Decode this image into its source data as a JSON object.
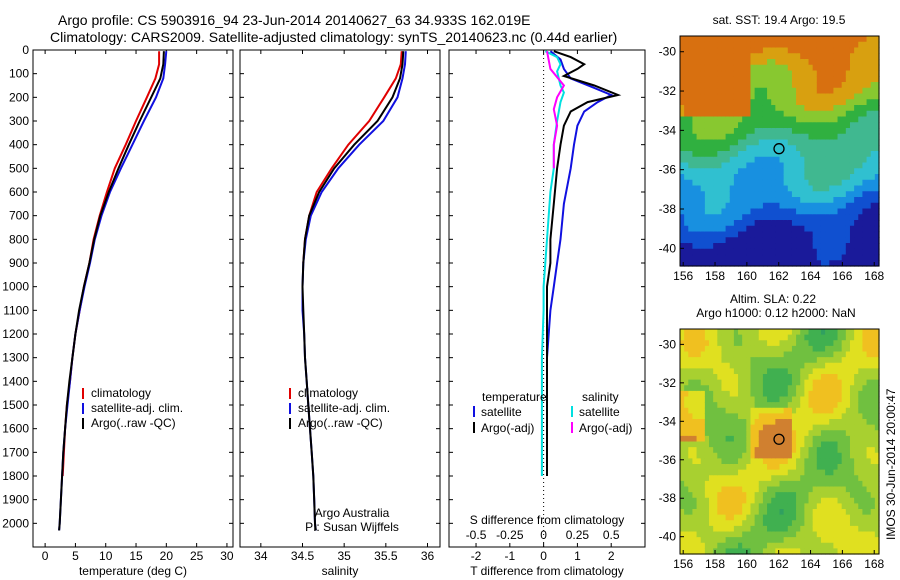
{
  "header": {
    "line1": "Argo profile: CS 5903916_94 23-Jun-2014 20140627_63 34.933S 162.019E",
    "line2": "Climatology: CARS2009. Satellite-adjusted climatology: synTS_20140623.nc (0.44d earlier)"
  },
  "colors": {
    "climatology": "#e00000",
    "satellite": "#1010e0",
    "argo": "#000000",
    "argo_adj_salinity": "#ff00ff",
    "satellite_salinity": "#00e0e0"
  },
  "chart_data": [
    {
      "type": "line",
      "panel": "temperature",
      "xlabel": "temperature (deg C)",
      "ylabel": "",
      "xlim": [
        -2,
        31
      ],
      "ylim": [
        2100,
        0
      ],
      "xticks": [
        "0",
        "5",
        "10",
        "15",
        "20",
        "25",
        "30"
      ],
      "yticks": [
        "0",
        "100",
        "200",
        "300",
        "400",
        "500",
        "600",
        "700",
        "800",
        "900",
        "1000",
        "1100",
        "1200",
        "1300",
        "1400",
        "1500",
        "1600",
        "1700",
        "1800",
        "1900",
        "2000"
      ],
      "legend": [
        "climatology",
        "satellite-adj. clim.",
        "Argo(..raw -QC)"
      ],
      "series": [
        {
          "name": "climatology",
          "color": "#e00000",
          "points": [
            [
              18.8,
              5
            ],
            [
              18.8,
              60
            ],
            [
              18.2,
              120
            ],
            [
              16.8,
              200
            ],
            [
              15.0,
              300
            ],
            [
              13.3,
              400
            ],
            [
              11.5,
              500
            ],
            [
              10.2,
              600
            ],
            [
              9.0,
              700
            ],
            [
              8.0,
              800
            ],
            [
              7.3,
              900
            ],
            [
              6.4,
              1000
            ],
            [
              5.7,
              1100
            ],
            [
              5.0,
              1200
            ],
            [
              4.5,
              1300
            ],
            [
              4.1,
              1400
            ],
            [
              3.6,
              1500
            ],
            [
              3.3,
              1600
            ],
            [
              3.1,
              1700
            ],
            [
              2.9,
              1800
            ]
          ]
        },
        {
          "name": "satellite-adj. clim.",
          "color": "#1010e0",
          "points": [
            [
              20.0,
              5
            ],
            [
              19.8,
              60
            ],
            [
              19.5,
              120
            ],
            [
              18.3,
              200
            ],
            [
              16.3,
              300
            ],
            [
              14.4,
              400
            ],
            [
              12.5,
              500
            ],
            [
              10.7,
              600
            ],
            [
              9.3,
              700
            ],
            [
              8.2,
              800
            ],
            [
              7.4,
              900
            ],
            [
              6.5,
              1000
            ],
            [
              5.7,
              1100
            ],
            [
              5.0,
              1200
            ],
            [
              4.5,
              1300
            ],
            [
              4.1,
              1400
            ],
            [
              3.7,
              1500
            ],
            [
              3.3,
              1600
            ],
            [
              3.0,
              1700
            ],
            [
              2.8,
              1800
            ],
            [
              2.6,
              1900
            ],
            [
              2.4,
              2000
            ],
            [
              2.3,
              2030
            ]
          ]
        },
        {
          "name": "Argo(..raw -QC)",
          "color": "#000000",
          "points": [
            [
              19.6,
              5
            ],
            [
              19.5,
              60
            ],
            [
              19.0,
              120
            ],
            [
              17.5,
              200
            ],
            [
              15.6,
              300
            ],
            [
              13.8,
              400
            ],
            [
              12.1,
              500
            ],
            [
              10.5,
              600
            ],
            [
              9.1,
              700
            ],
            [
              8.1,
              800
            ],
            [
              7.3,
              900
            ],
            [
              6.4,
              1000
            ],
            [
              5.6,
              1100
            ],
            [
              5.0,
              1200
            ],
            [
              4.5,
              1300
            ],
            [
              4.0,
              1400
            ],
            [
              3.6,
              1500
            ],
            [
              3.3,
              1600
            ],
            [
              3.0,
              1700
            ],
            [
              2.8,
              1800
            ],
            [
              2.6,
              1900
            ],
            [
              2.4,
              2000
            ],
            [
              2.3,
              2030
            ]
          ]
        }
      ]
    },
    {
      "type": "line",
      "panel": "salinity",
      "xlabel": "salinity",
      "xlim": [
        33.75,
        36.15
      ],
      "ylim": [
        2100,
        0
      ],
      "xticks": [
        "34",
        "34.5",
        "35",
        "35.5",
        "36"
      ],
      "legend": [
        "climatology",
        "satellite-adj. clim.",
        "Argo(..raw -QC)"
      ],
      "annotation": [
        "Argo Australia",
        "PI: Susan Wijffels"
      ],
      "series": [
        {
          "name": "climatology",
          "color": "#e00000",
          "points": [
            [
              35.69,
              5
            ],
            [
              35.68,
              60
            ],
            [
              35.62,
              120
            ],
            [
              35.48,
              200
            ],
            [
              35.3,
              300
            ],
            [
              35.05,
              400
            ],
            [
              34.85,
              500
            ],
            [
              34.67,
              600
            ],
            [
              34.58,
              700
            ],
            [
              34.53,
              800
            ],
            [
              34.51,
              900
            ]
          ]
        },
        {
          "name": "satellite-adj. clim.",
          "color": "#1010e0",
          "points": [
            [
              35.74,
              5
            ],
            [
              35.73,
              60
            ],
            [
              35.7,
              120
            ],
            [
              35.64,
              200
            ],
            [
              35.47,
              300
            ],
            [
              35.18,
              400
            ],
            [
              34.93,
              500
            ],
            [
              34.73,
              600
            ],
            [
              34.6,
              700
            ],
            [
              34.54,
              800
            ],
            [
              34.51,
              900
            ],
            [
              34.5,
              1000
            ],
            [
              34.5,
              1100
            ],
            [
              34.52,
              1200
            ],
            [
              34.53,
              1300
            ],
            [
              34.55,
              1400
            ],
            [
              34.57,
              1500
            ],
            [
              34.59,
              1600
            ],
            [
              34.61,
              1700
            ],
            [
              34.63,
              1800
            ],
            [
              34.64,
              1900
            ],
            [
              34.65,
              2000
            ],
            [
              34.66,
              2030
            ]
          ]
        },
        {
          "name": "Argo(..raw -QC)",
          "color": "#000000",
          "points": [
            [
              35.71,
              5
            ],
            [
              35.7,
              60
            ],
            [
              35.67,
              120
            ],
            [
              35.58,
              200
            ],
            [
              35.4,
              300
            ],
            [
              35.12,
              400
            ],
            [
              34.88,
              500
            ],
            [
              34.7,
              600
            ],
            [
              34.58,
              700
            ],
            [
              34.53,
              800
            ],
            [
              34.51,
              900
            ],
            [
              34.5,
              1000
            ],
            [
              34.51,
              1100
            ],
            [
              34.52,
              1200
            ],
            [
              34.53,
              1300
            ],
            [
              34.55,
              1400
            ],
            [
              34.57,
              1500
            ],
            [
              34.59,
              1600
            ],
            [
              34.61,
              1700
            ],
            [
              34.63,
              1800
            ],
            [
              34.64,
              1900
            ],
            [
              34.65,
              2000
            ],
            [
              34.66,
              2030
            ]
          ]
        }
      ]
    },
    {
      "type": "line",
      "panel": "difference",
      "xlabel": "T difference from climatology",
      "xlabel_top": "S difference from climatology",
      "xlim": [
        -2.8,
        3.0
      ],
      "ylim": [
        2100,
        0
      ],
      "xticks": [
        "-2",
        "-1",
        "0",
        "1",
        "2"
      ],
      "xticks_salinity": [
        "-0.5",
        "-0.25",
        "0",
        "0.25",
        "0.5"
      ],
      "legend_left_title": "temperature",
      "legend_right_title": "salinity",
      "legend_left": [
        "satellite",
        "Argo(-adj)"
      ],
      "legend_right": [
        "satellite",
        "Argo(-adj)"
      ],
      "series": [
        {
          "name": "temperature satellite",
          "color": "#1010e0",
          "points": [
            [
              0.2,
              5
            ],
            [
              0.5,
              40
            ],
            [
              0.6,
              80
            ],
            [
              0.8,
              120
            ],
            [
              1.5,
              160
            ],
            [
              2.0,
              190
            ],
            [
              1.6,
              220
            ],
            [
              1.2,
              260
            ],
            [
              1.0,
              320
            ],
            [
              0.9,
              400
            ],
            [
              0.8,
              500
            ],
            [
              0.6,
              650
            ],
            [
              0.5,
              800
            ],
            [
              0.4,
              900
            ],
            [
              0.3,
              1000
            ],
            [
              0.2,
              1100
            ],
            [
              0.1,
              1300
            ],
            [
              0.1,
              1500
            ],
            [
              0.1,
              1600
            ],
            [
              0.1,
              1700
            ],
            [
              0.1,
              1800
            ]
          ]
        },
        {
          "name": "temperature Argo(-adj)",
          "color": "#000000",
          "points": [
            [
              0.3,
              5
            ],
            [
              0.8,
              30
            ],
            [
              1.2,
              60
            ],
            [
              1.0,
              80
            ],
            [
              0.6,
              110
            ],
            [
              1.5,
              150
            ],
            [
              2.2,
              190
            ],
            [
              1.3,
              220
            ],
            [
              0.8,
              260
            ],
            [
              0.6,
              320
            ],
            [
              0.5,
              400
            ],
            [
              0.4,
              500
            ],
            [
              0.3,
              650
            ],
            [
              0.2,
              800
            ],
            [
              0.2,
              900
            ],
            [
              0.1,
              1000
            ],
            [
              0.1,
              1100
            ],
            [
              0.1,
              1300
            ],
            [
              0.1,
              1500
            ],
            [
              0.1,
              1600
            ],
            [
              0.1,
              1700
            ],
            [
              0.1,
              1800
            ]
          ]
        },
        {
          "name": "salinity satellite",
          "color": "#00e0e0",
          "points": [
            [
              0.05,
              5
            ],
            [
              0.4,
              30
            ],
            [
              0.5,
              60
            ],
            [
              0.4,
              90
            ],
            [
              0.5,
              150
            ],
            [
              0.6,
              180
            ],
            [
              0.5,
              220
            ],
            [
              0.4,
              300
            ],
            [
              0.3,
              400
            ],
            [
              0.3,
              500
            ],
            [
              0.2,
              600
            ],
            [
              0.15,
              700
            ],
            [
              0.1,
              800
            ],
            [
              0.05,
              900
            ],
            [
              0.0,
              1000
            ],
            [
              0.0,
              1100
            ],
            [
              -0.05,
              1300
            ],
            [
              -0.05,
              1500
            ],
            [
              -0.05,
              1600
            ],
            [
              -0.05,
              1700
            ],
            [
              -0.05,
              1800
            ]
          ]
        },
        {
          "name": "salinity Argo(-adj)",
          "color": "#ff00ff",
          "points": [
            [
              0.1,
              5
            ],
            [
              0.2,
              80
            ],
            [
              0.6,
              150
            ],
            [
              0.4,
              200
            ],
            [
              0.3,
              250
            ],
            [
              0.4,
              320
            ],
            [
              0.3,
              400
            ],
            [
              0.3,
              500
            ]
          ]
        }
      ]
    },
    {
      "type": "heatmap",
      "panel": "sst_map",
      "title": "sat. SST: 19.4  Argo: 19.5",
      "xticks": [
        "156",
        "158",
        "160",
        "162",
        "164",
        "166",
        "168"
      ],
      "yticks": [
        "-30",
        "-32",
        "-34",
        "-36",
        "-38",
        "-40"
      ],
      "xlim": [
        155.8,
        168.3
      ],
      "ylim": [
        -40.9,
        -29.2
      ],
      "marker": {
        "lon": 162.019,
        "lat": -34.933
      }
    },
    {
      "type": "heatmap",
      "panel": "sla_map",
      "title": "Altim. SLA: 0.22",
      "subtitle": "Argo h1000: 0.12 h2000: NaN",
      "xticks": [
        "156",
        "158",
        "160",
        "162",
        "164",
        "166",
        "168"
      ],
      "yticks": [
        "-30",
        "-32",
        "-34",
        "-36",
        "-38",
        "-40"
      ],
      "xlim": [
        155.8,
        168.3
      ],
      "ylim": [
        -40.9,
        -29.2
      ],
      "marker": {
        "lon": 162.019,
        "lat": -34.933
      }
    }
  ],
  "watermark": "IMOS 30-Jun-2014 20:00:47"
}
